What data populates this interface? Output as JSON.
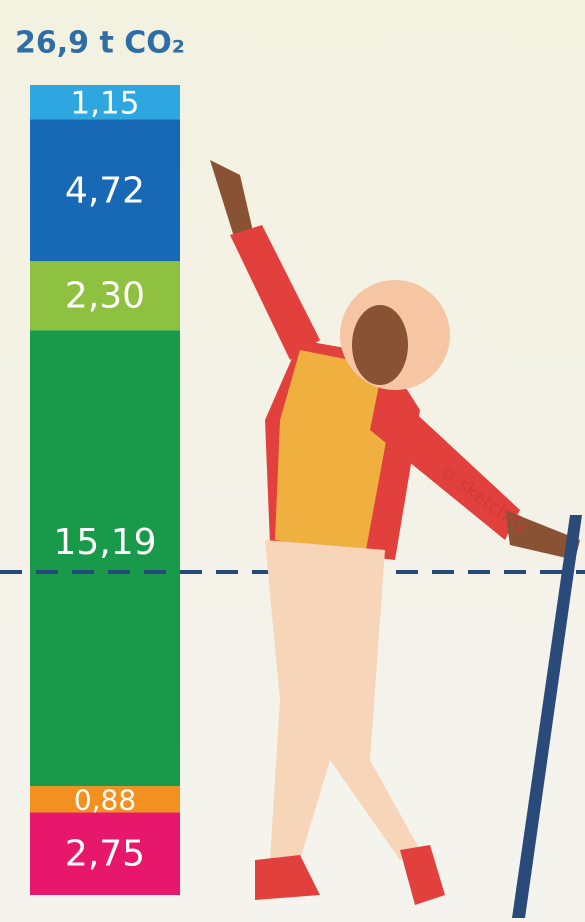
{
  "chart_data": {
    "type": "stacked-bar",
    "title": "26,9 t CO₂",
    "series": [
      {
        "color": "#e7176b",
        "values": [
          2.75
        ],
        "value_labels": [
          "2,75"
        ]
      },
      {
        "color": "#f29120",
        "values": [
          0.88
        ],
        "value_labels": [
          "0,88"
        ]
      },
      {
        "color": "#199a4b",
        "values": [
          15.19
        ],
        "value_labels": [
          "15,19"
        ]
      },
      {
        "color": "#8dc13f",
        "values": [
          2.3
        ],
        "value_labels": [
          "2,30"
        ]
      },
      {
        "color": "#1769b6",
        "values": [
          4.72
        ],
        "value_labels": [
          "4,72"
        ]
      },
      {
        "color": "#2ea6df",
        "values": [
          1.15
        ],
        "value_labels": [
          "1,15"
        ]
      }
    ],
    "watermark": "© sketchify"
  }
}
